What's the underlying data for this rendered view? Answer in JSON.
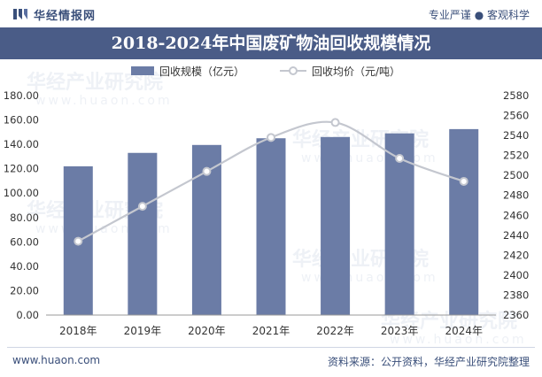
{
  "header": {
    "brand_name": "华经情报网",
    "slogan": "专业严谨 ● 客观科学"
  },
  "watermark": "华经产业研究院",
  "watermark_url": "www.huaon.com",
  "footer": {
    "website": "www.huaon.com",
    "source": "资料来源：公开资料，华经产业研究院整理"
  },
  "colors": {
    "bar": "#6b7ca6",
    "line": "#c4c7cf",
    "header": "#4a5c87",
    "text": "#333333"
  },
  "chart_data": {
    "type": "bar",
    "title": "2018-2024年中国废矿物油回收规模情况",
    "categories": [
      "2018年",
      "2019年",
      "2020年",
      "2021年",
      "2022年",
      "2023年",
      "2024年"
    ],
    "series": [
      {
        "name": "回收规模（亿元）",
        "type": "bar",
        "axis": "left",
        "values": [
          122,
          133,
          139.5,
          145,
          146,
          149,
          152.5
        ]
      },
      {
        "name": "回收均价（元/吨）",
        "type": "line",
        "axis": "right",
        "values": [
          2434,
          2469,
          2504,
          2538,
          2553,
          2517,
          2494
        ]
      }
    ],
    "y_left": {
      "min": 0,
      "max": 180,
      "step": 20,
      "tick_labels": [
        "0.00",
        "20.00",
        "40.00",
        "60.00",
        "80.00",
        "100.00",
        "120.00",
        "140.00",
        "160.00",
        "180.00"
      ]
    },
    "y_right": {
      "min": 2360,
      "max": 2580,
      "step": 20,
      "tick_labels": [
        "2360",
        "2380",
        "2400",
        "2420",
        "2440",
        "2460",
        "2480",
        "2500",
        "2520",
        "2540",
        "2560",
        "2580"
      ]
    },
    "legend_position": "top-center",
    "grid": false
  }
}
